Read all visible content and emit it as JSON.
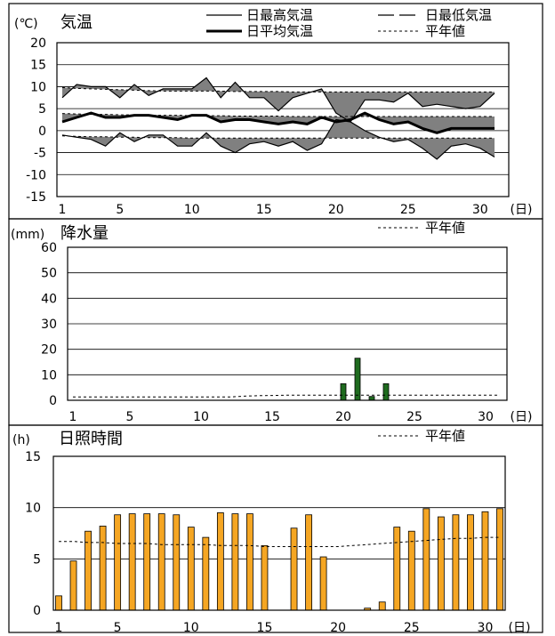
{
  "chart_data": [
    {
      "type": "line",
      "title": "気温",
      "unit": "(℃)",
      "x_unit": "(日)",
      "x": [
        1,
        2,
        3,
        4,
        5,
        6,
        7,
        8,
        9,
        10,
        11,
        12,
        13,
        14,
        15,
        16,
        17,
        18,
        19,
        20,
        21,
        22,
        23,
        24,
        25,
        26,
        27,
        28,
        29,
        30,
        31
      ],
      "xticks": [
        1,
        5,
        10,
        15,
        20,
        25,
        30
      ],
      "yticks": [
        20,
        15,
        10,
        5,
        0,
        -5,
        -10,
        -15
      ],
      "ylim": [
        -15,
        20
      ],
      "legend": [
        "日最高気温",
        "日最低気温",
        "日平均気温",
        "平年値"
      ],
      "fill_color": "#808080",
      "series": [
        {
          "name": "日最高気温",
          "style": "thin",
          "values": [
            7.5,
            10.5,
            10,
            10,
            7.5,
            10.5,
            8,
            9.5,
            9.5,
            9.5,
            12,
            7.5,
            11,
            7.5,
            7.5,
            4.5,
            7.5,
            8.5,
            9.5,
            4,
            2,
            7,
            7,
            6.5,
            8.5,
            5.5,
            6,
            5.5,
            5,
            5.5,
            8.5
          ]
        },
        {
          "name": "日最低気温",
          "style": "thin-dash",
          "values": [
            -1,
            -1.5,
            -2,
            -3.5,
            -0.5,
            -2.5,
            -1,
            -1,
            -3.5,
            -3.5,
            -0.5,
            -3.5,
            -5,
            -3,
            -2.5,
            -3.5,
            -2.5,
            -4.5,
            -3,
            2.5,
            2,
            0,
            -1.5,
            -2.5,
            -2,
            -4,
            -6.5,
            -3.5,
            -3,
            -4,
            -6
          ]
        },
        {
          "name": "日平均気温",
          "style": "thick",
          "values": [
            2,
            3,
            4,
            3,
            3,
            3.5,
            3.5,
            3,
            2.5,
            3.5,
            3.5,
            2,
            2.5,
            2.5,
            2,
            1.5,
            2,
            1.5,
            3,
            2,
            2.5,
            4,
            2.5,
            1.5,
            2,
            0.5,
            -0.5,
            0.5,
            0.5,
            0.5,
            0.5
          ]
        },
        {
          "name": "平年値 (最高)",
          "style": "dashed",
          "values": [
            9.8,
            9.6,
            9.5,
            9.4,
            9.3,
            9.2,
            9.1,
            9.0,
            9.0,
            9.0,
            9.0,
            9.0,
            8.9,
            8.9,
            8.9,
            8.9,
            8.8,
            8.8,
            8.8,
            8.8,
            8.8,
            8.8,
            8.8,
            8.8,
            8.8,
            8.8,
            8.8,
            8.8,
            8.8,
            8.8,
            8.8
          ]
        },
        {
          "name": "平年値 (平均)",
          "style": "dashed",
          "values": [
            3.9,
            3.8,
            3.7,
            3.7,
            3.6,
            3.6,
            3.5,
            3.5,
            3.5,
            3.4,
            3.4,
            3.4,
            3.3,
            3.3,
            3.3,
            3.3,
            3.2,
            3.2,
            3.2,
            3.2,
            3.2,
            3.2,
            3.2,
            3.2,
            3.2,
            3.2,
            3.2,
            3.2,
            3.2,
            3.2,
            3.2
          ]
        },
        {
          "name": "平年値 (最低)",
          "style": "dashed",
          "values": [
            -1.2,
            -1.3,
            -1.4,
            -1.4,
            -1.5,
            -1.5,
            -1.6,
            -1.6,
            -1.6,
            -1.7,
            -1.7,
            -1.7,
            -1.7,
            -1.7,
            -1.7,
            -1.7,
            -1.7,
            -1.7,
            -1.7,
            -1.7,
            -1.7,
            -1.7,
            -1.7,
            -1.7,
            -1.7,
            -1.7,
            -1.7,
            -1.7,
            -1.7,
            -1.7,
            -1.7
          ]
        }
      ]
    },
    {
      "type": "bar",
      "title": "降水量",
      "unit": "(mm)",
      "x_unit": "(日)",
      "x": [
        1,
        2,
        3,
        4,
        5,
        6,
        7,
        8,
        9,
        10,
        11,
        12,
        13,
        14,
        15,
        16,
        17,
        18,
        19,
        20,
        21,
        22,
        23,
        24,
        25,
        26,
        27,
        28,
        29,
        30,
        31
      ],
      "xticks": [
        1,
        5,
        10,
        15,
        20,
        25,
        30
      ],
      "yticks": [
        60,
        50,
        40,
        30,
        20,
        10,
        0
      ],
      "ylim": [
        0,
        60
      ],
      "legend": [
        "平年値"
      ],
      "bar_color": "#1f6b1f",
      "values": [
        0,
        0,
        0,
        0,
        0,
        0,
        0,
        0,
        0,
        0,
        0,
        0,
        0,
        0,
        0,
        0,
        0,
        0,
        0,
        6.5,
        16.5,
        1.5,
        6.5,
        0,
        0,
        0,
        0,
        0,
        0,
        0,
        0
      ],
      "normal": [
        1.3,
        1.3,
        1.3,
        1.3,
        1.3,
        1.3,
        1.3,
        1.3,
        1.3,
        1.3,
        1.3,
        1.3,
        1.6,
        1.8,
        1.9,
        2.0,
        2.0,
        2.0,
        2.0,
        2.0,
        2.0,
        2.0,
        2.0,
        2.0,
        2.0,
        2.0,
        2.0,
        2.0,
        2.0,
        2.0,
        2.0
      ]
    },
    {
      "type": "bar",
      "title": "日照時間",
      "unit": "(h)",
      "x_unit": "(日)",
      "x": [
        1,
        2,
        3,
        4,
        5,
        6,
        7,
        8,
        9,
        10,
        11,
        12,
        13,
        14,
        15,
        16,
        17,
        18,
        19,
        20,
        21,
        22,
        23,
        24,
        25,
        26,
        27,
        28,
        29,
        30,
        31
      ],
      "xticks": [
        1,
        5,
        10,
        15,
        20,
        25,
        30
      ],
      "yticks": [
        15,
        10,
        5,
        0
      ],
      "ylim": [
        0,
        15
      ],
      "legend": [
        "平年値"
      ],
      "bar_color": "#f5a623",
      "values": [
        1.4,
        4.8,
        7.7,
        8.2,
        9.3,
        9.4,
        9.4,
        9.4,
        9.3,
        8.1,
        7.1,
        9.5,
        9.4,
        9.4,
        6.3,
        0,
        8,
        9.3,
        5.2,
        0,
        0,
        0.2,
        0.8,
        8.1,
        7.7,
        9.9,
        9.1,
        9.3,
        9.3,
        9.6,
        9.9
      ],
      "normal": [
        6.7,
        6.7,
        6.6,
        6.6,
        6.5,
        6.5,
        6.5,
        6.4,
        6.4,
        6.4,
        6.4,
        6.3,
        6.3,
        6.3,
        6.2,
        6.2,
        6.2,
        6.2,
        6.2,
        6.2,
        6.3,
        6.4,
        6.5,
        6.6,
        6.7,
        6.8,
        6.9,
        7.0,
        7.0,
        7.1,
        7.1
      ]
    }
  ]
}
